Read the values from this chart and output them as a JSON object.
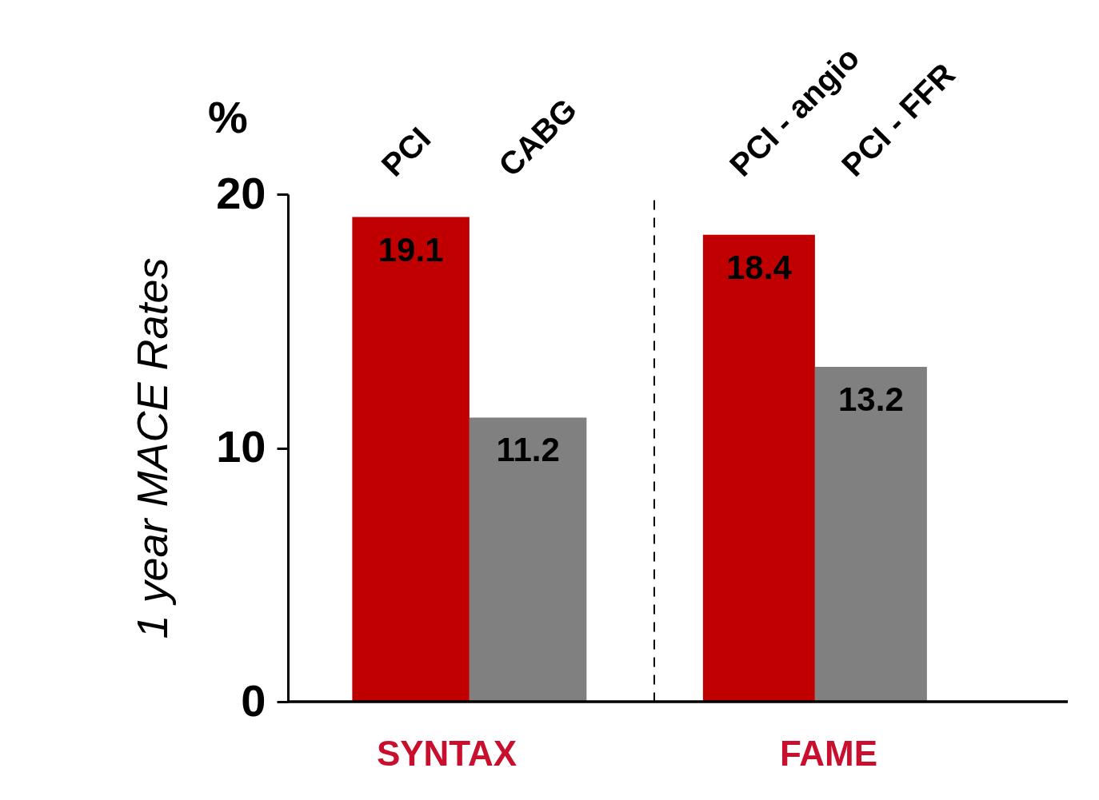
{
  "chart_data": [
    {
      "type": "bar",
      "title": "SYNTAX",
      "ylabel": "1 year MACE Rates",
      "annotations": [
        "%"
      ],
      "categories": [
        "PCI",
        "CABG"
      ],
      "values": [
        19.1,
        11.2
      ],
      "colors": [
        "#c00000",
        "#808080"
      ],
      "data_labels": true,
      "ylim": [
        0,
        20
      ],
      "yticks": [
        0,
        10,
        20
      ],
      "grid": false
    },
    {
      "type": "bar",
      "title": "FAME",
      "categories": [
        "PCI - angio",
        "PCI -  FFR"
      ],
      "values": [
        18.4,
        13.2
      ],
      "colors": [
        "#c00000",
        "#808080"
      ],
      "data_labels": true,
      "ylim": [
        0,
        20
      ],
      "yticks": [
        0,
        10,
        20
      ],
      "grid": false,
      "tick_labels": "x"
    }
  ]
}
